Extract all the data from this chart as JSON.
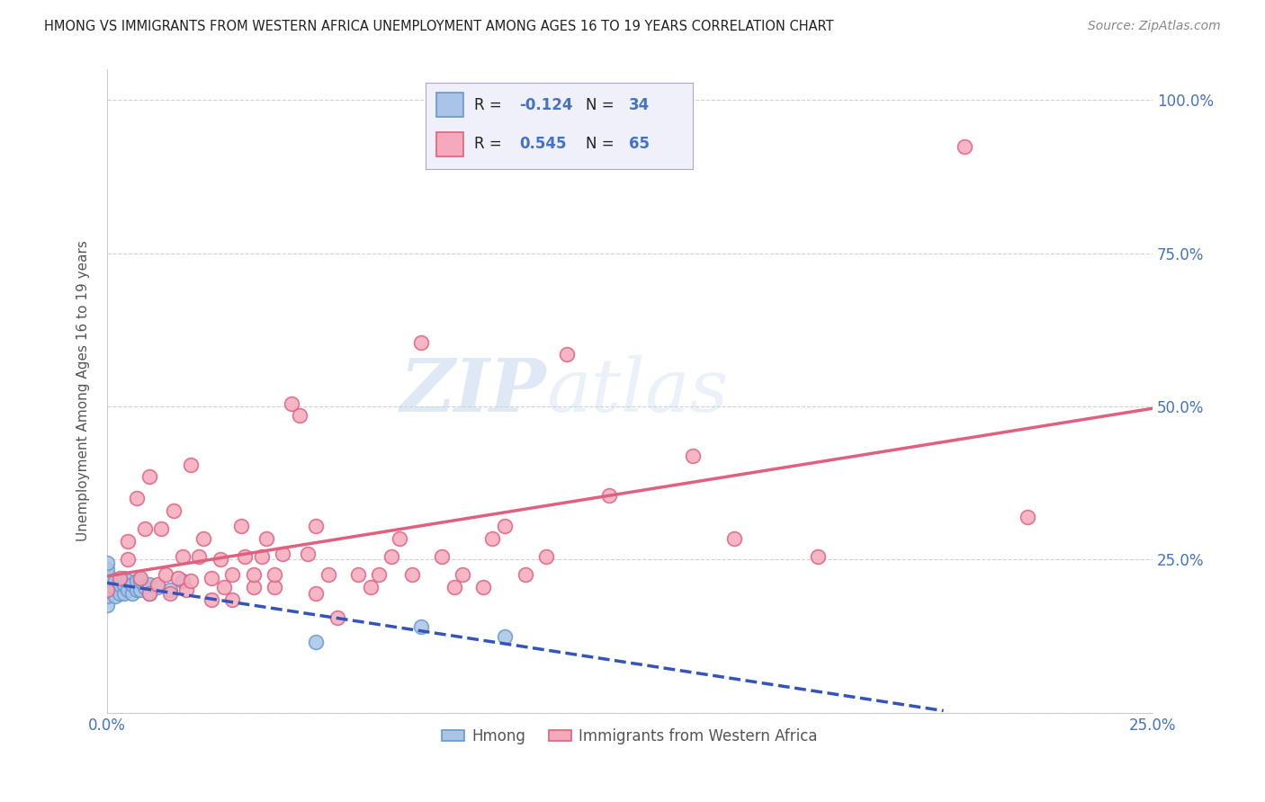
{
  "title": "HMONG VS IMMIGRANTS FROM WESTERN AFRICA UNEMPLOYMENT AMONG AGES 16 TO 19 YEARS CORRELATION CHART",
  "source": "Source: ZipAtlas.com",
  "ylabel": "Unemployment Among Ages 16 to 19 years",
  "xlim": [
    0.0,
    0.25
  ],
  "ylim": [
    0.0,
    1.05
  ],
  "x_ticks": [
    0.0,
    0.05,
    0.1,
    0.15,
    0.2,
    0.25
  ],
  "x_tick_labels": [
    "0.0%",
    "",
    "",
    "",
    "",
    "25.0%"
  ],
  "y_ticks": [
    0.0,
    0.25,
    0.5,
    0.75,
    1.0
  ],
  "y_tick_labels": [
    "",
    "25.0%",
    "50.0%",
    "75.0%",
    "100.0%"
  ],
  "hmong_color": "#aac4e8",
  "hmong_edge_color": "#6699cc",
  "wa_color": "#f5aabb",
  "wa_edge_color": "#e06080",
  "hmong_line_color": "#3355bb",
  "wa_line_color": "#e06080",
  "hmong_R": -0.124,
  "hmong_N": 34,
  "wa_R": 0.545,
  "wa_N": 65,
  "watermark_zip": "ZIP",
  "watermark_atlas": "atlas",
  "legend_label_hmong": "Hmong",
  "legend_label_wa": "Immigrants from Western Africa",
  "hmong_x": [
    0.0,
    0.0,
    0.0,
    0.0,
    0.0,
    0.0,
    0.0,
    0.0,
    0.0,
    0.002,
    0.002,
    0.002,
    0.003,
    0.003,
    0.004,
    0.004,
    0.004,
    0.005,
    0.005,
    0.006,
    0.006,
    0.007,
    0.007,
    0.008,
    0.008,
    0.009,
    0.01,
    0.01,
    0.012,
    0.015,
    0.018,
    0.05,
    0.075,
    0.095
  ],
  "hmong_y": [
    0.175,
    0.19,
    0.2,
    0.21,
    0.215,
    0.22,
    0.225,
    0.235,
    0.245,
    0.19,
    0.205,
    0.215,
    0.195,
    0.21,
    0.195,
    0.21,
    0.22,
    0.2,
    0.215,
    0.195,
    0.21,
    0.2,
    0.215,
    0.2,
    0.215,
    0.205,
    0.195,
    0.21,
    0.205,
    0.2,
    0.215,
    0.115,
    0.14,
    0.125
  ],
  "wa_x": [
    0.0,
    0.003,
    0.005,
    0.005,
    0.007,
    0.008,
    0.009,
    0.01,
    0.01,
    0.012,
    0.013,
    0.014,
    0.015,
    0.016,
    0.017,
    0.018,
    0.019,
    0.02,
    0.02,
    0.022,
    0.023,
    0.025,
    0.025,
    0.027,
    0.028,
    0.03,
    0.03,
    0.032,
    0.033,
    0.035,
    0.035,
    0.037,
    0.038,
    0.04,
    0.04,
    0.042,
    0.044,
    0.046,
    0.048,
    0.05,
    0.05,
    0.053,
    0.055,
    0.06,
    0.063,
    0.065,
    0.068,
    0.07,
    0.073,
    0.075,
    0.08,
    0.083,
    0.085,
    0.09,
    0.092,
    0.095,
    0.1,
    0.105,
    0.11,
    0.12,
    0.14,
    0.15,
    0.17,
    0.205,
    0.22
  ],
  "wa_y": [
    0.2,
    0.22,
    0.25,
    0.28,
    0.35,
    0.22,
    0.3,
    0.195,
    0.385,
    0.21,
    0.3,
    0.225,
    0.195,
    0.33,
    0.22,
    0.255,
    0.2,
    0.215,
    0.405,
    0.255,
    0.285,
    0.185,
    0.22,
    0.25,
    0.205,
    0.185,
    0.225,
    0.305,
    0.255,
    0.205,
    0.225,
    0.255,
    0.285,
    0.205,
    0.225,
    0.26,
    0.505,
    0.485,
    0.26,
    0.305,
    0.195,
    0.225,
    0.155,
    0.225,
    0.205,
    0.225,
    0.255,
    0.285,
    0.225,
    0.605,
    0.255,
    0.205,
    0.225,
    0.205,
    0.285,
    0.305,
    0.225,
    0.255,
    0.585,
    0.355,
    0.42,
    0.285,
    0.255,
    0.925,
    0.32
  ],
  "background_color": "#ffffff",
  "grid_color": "#cccccc",
  "legend_box_color": "#e8e8f5",
  "legend_box_edge": "#aaaacc"
}
